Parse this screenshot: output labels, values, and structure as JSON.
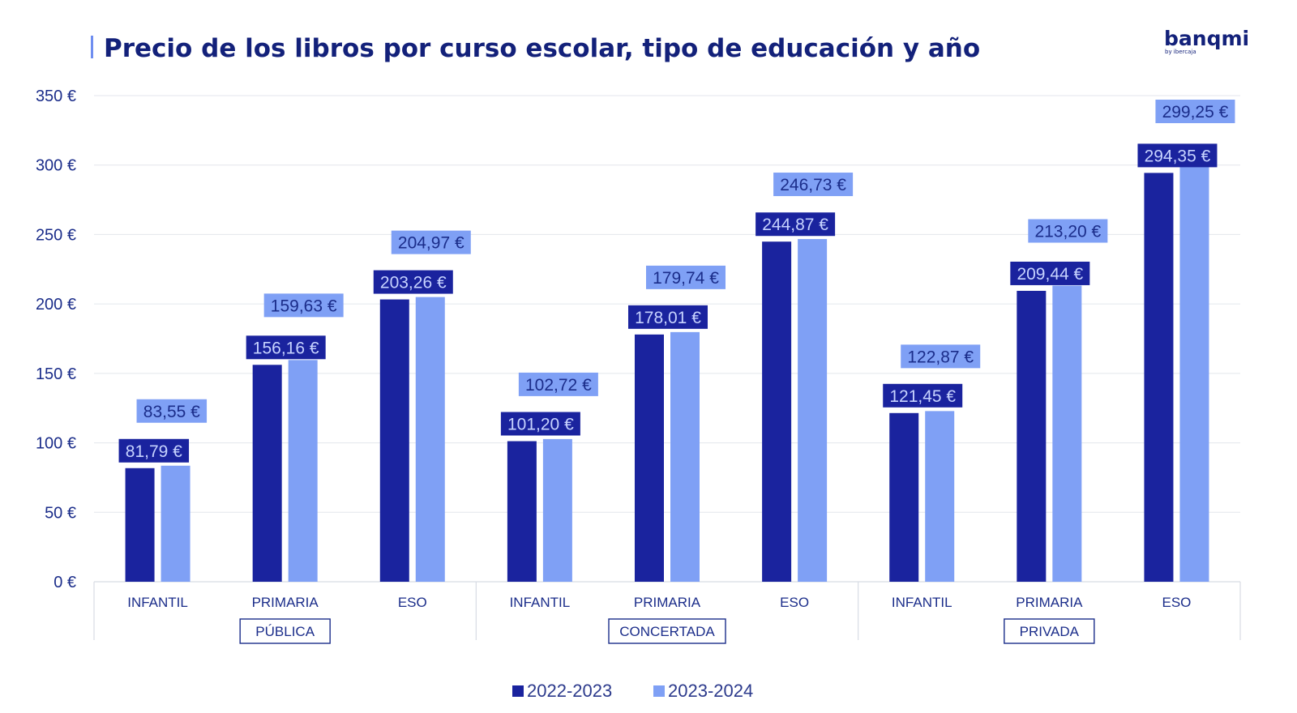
{
  "title": "Precio de los libros por curso escolar, tipo de educación y año",
  "brand": {
    "name": "banqmi",
    "tagline": "by ibercaja"
  },
  "colors": {
    "series1": "#1a239e",
    "series2": "#7fa0f5",
    "text": "#1b2d8a",
    "title": "#13217a"
  },
  "chart_data": {
    "type": "bar",
    "title": "Precio de los libros por curso escolar, tipo de educación y año",
    "xlabel": "",
    "ylabel": "",
    "ylim": [
      0,
      350
    ],
    "yticks": [
      0,
      50,
      100,
      150,
      200,
      250,
      300,
      350
    ],
    "ytick_labels": [
      "0 €",
      "50 €",
      "100 €",
      "150 €",
      "200 €",
      "250 €",
      "300 €",
      "350 €"
    ],
    "grid": true,
    "legend_position": "bottom",
    "groups": [
      {
        "name": "PÚBLICA",
        "categories": [
          "INFANTIL",
          "PRIMARIA",
          "ESO"
        ]
      },
      {
        "name": "CONCERTADA",
        "categories": [
          "INFANTIL",
          "PRIMARIA",
          "ESO"
        ]
      },
      {
        "name": "PRIVADA",
        "categories": [
          "INFANTIL",
          "PRIMARIA",
          "ESO"
        ]
      }
    ],
    "categories": [
      "INFANTIL",
      "PRIMARIA",
      "ESO",
      "INFANTIL",
      "PRIMARIA",
      "ESO",
      "INFANTIL",
      "PRIMARIA",
      "ESO"
    ],
    "series": [
      {
        "name": "2022-2023",
        "color": "#1a239e",
        "values": [
          81.79,
          156.16,
          203.26,
          101.2,
          178.01,
          244.87,
          121.45,
          209.44,
          294.35
        ],
        "labels": [
          "81,79 €",
          "156,16 €",
          "203,26 €",
          "101,20 €",
          "178,01 €",
          "244,87 €",
          "121,45 €",
          "209,44 €",
          "294,35 €"
        ]
      },
      {
        "name": "2023-2024",
        "color": "#7fa0f5",
        "values": [
          83.55,
          159.63,
          204.97,
          102.72,
          179.74,
          246.73,
          122.87,
          213.2,
          299.25
        ],
        "labels": [
          "83,55 €",
          "159,63 €",
          "204,97 €",
          "102,72 €",
          "179,74 €",
          "246,73 €",
          "122,87 €",
          "213,20 €",
          "299,25 €"
        ]
      }
    ]
  }
}
